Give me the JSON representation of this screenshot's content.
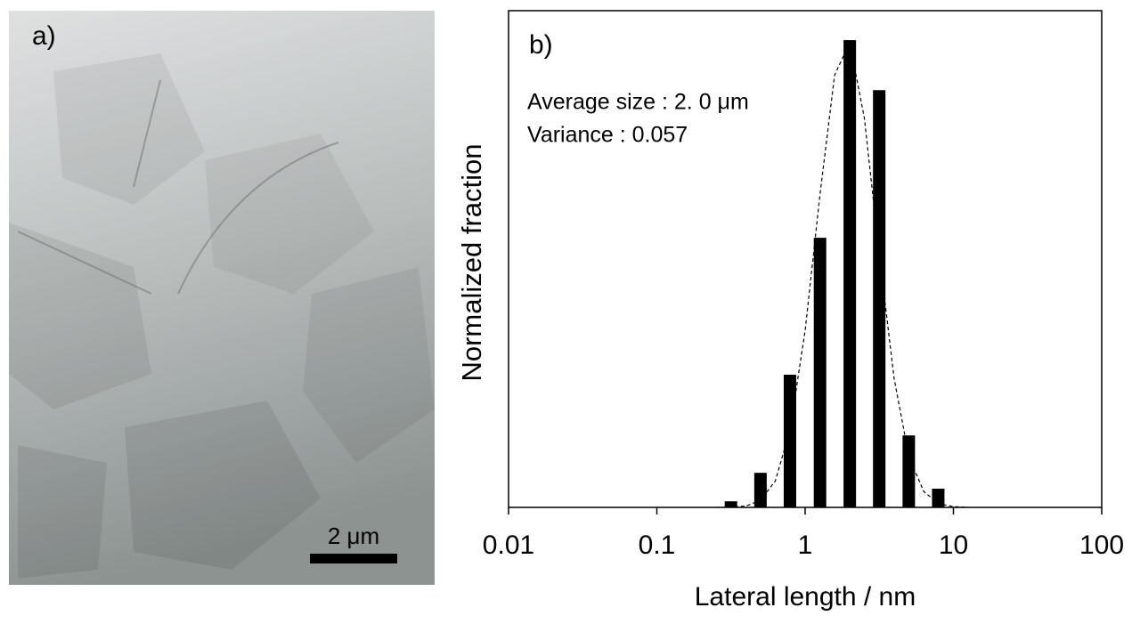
{
  "panel_a": {
    "label": "a)",
    "scale_bar": "2 μm"
  },
  "chart_data": {
    "type": "bar",
    "label": "b)",
    "annotations": [
      "Average size : 2. 0 μm",
      "Variance : 0.057"
    ],
    "x_label": "Lateral length / nm",
    "y_label": "Normalized fraction",
    "x": [
      0.316,
      0.5,
      0.79,
      1.26,
      2,
      3.16,
      5,
      7.9
    ],
    "values": [
      0.013,
      0.074,
      0.284,
      0.577,
      1,
      0.893,
      0.154,
      0.04
    ],
    "color": "#000000",
    "fit": {
      "x": [
        0.25,
        0.32,
        0.4,
        0.5,
        0.63,
        0.79,
        1,
        1.26,
        1.58,
        2,
        2.51,
        3.16,
        3.98,
        5.01,
        6.31,
        7.94,
        10,
        12.6
      ],
      "values": [
        0,
        0.0005,
        0.003,
        0.015,
        0.057,
        0.166,
        0.378,
        0.67,
        0.925,
        0.995,
        0.833,
        0.543,
        0.276,
        0.109,
        0.034,
        0.008,
        0.0015,
        0.0002
      ]
    },
    "xscale": "log",
    "xlim": [
      0.01,
      100
    ],
    "xticks": [
      0.01,
      0.1,
      1,
      10,
      100
    ],
    "ylim": [
      0,
      1.063
    ]
  }
}
